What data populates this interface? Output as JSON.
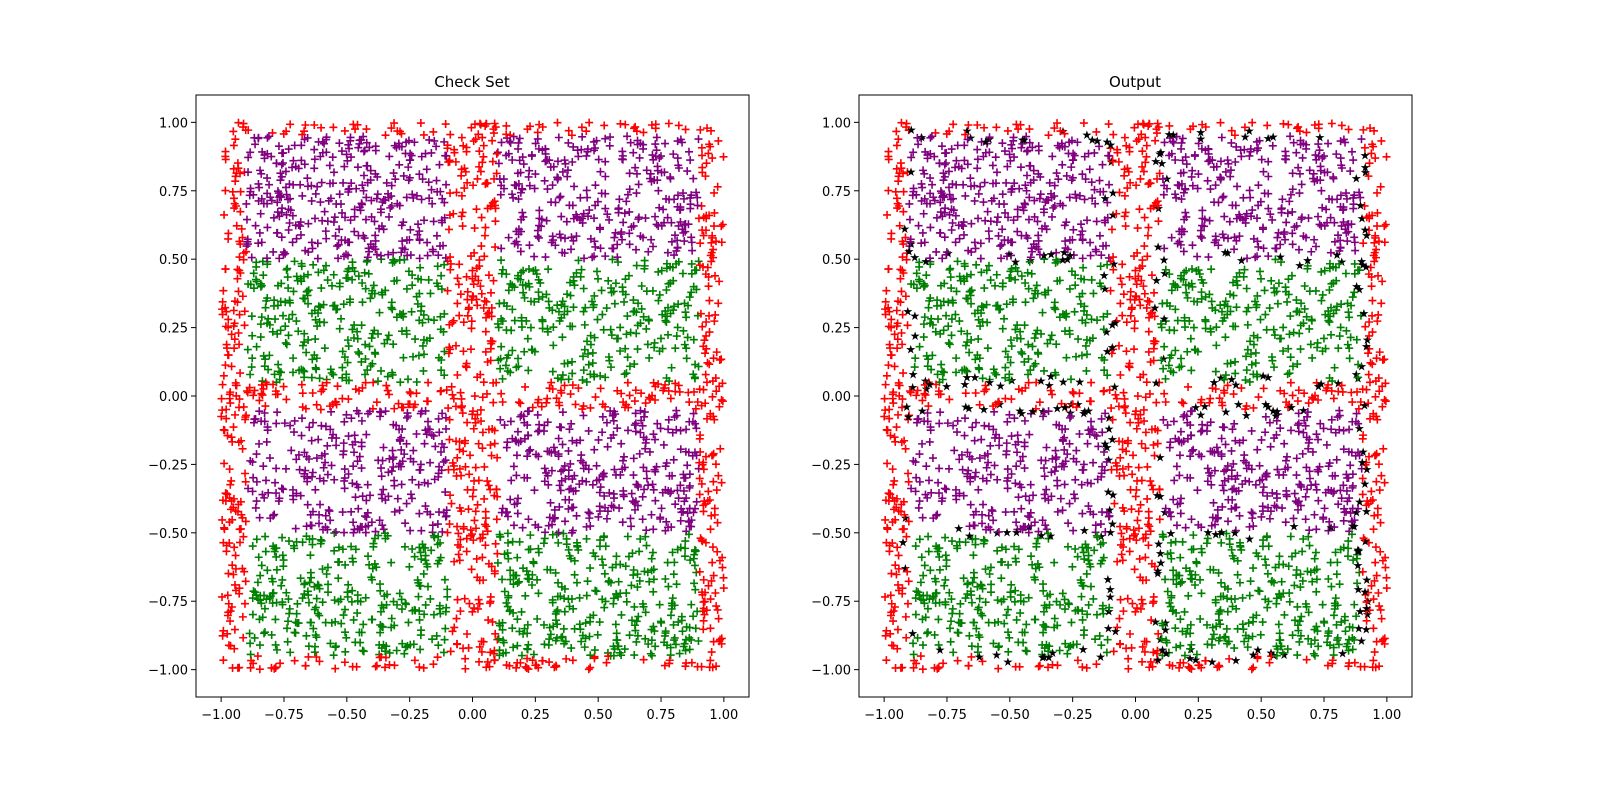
{
  "chart_data": [
    {
      "type": "scatter",
      "title": "Check Set",
      "xlabel": "",
      "ylabel": "",
      "xlim": [
        -1.1,
        1.1
      ],
      "ylim": [
        -1.1,
        1.1
      ],
      "xticks": [
        "−1.00",
        "−0.75",
        "−0.50",
        "−0.25",
        "0.00",
        "0.25",
        "0.50",
        "0.75",
        "1.00"
      ],
      "yticks": [
        "−1.00",
        "−0.75",
        "−0.50",
        "−0.25",
        "0.00",
        "0.25",
        "0.50",
        "0.75",
        "1.00"
      ],
      "xtick_values": [
        -1,
        -0.75,
        -0.5,
        -0.25,
        0,
        0.25,
        0.5,
        0.75,
        1
      ],
      "ytick_values": [
        -1,
        -0.75,
        -0.5,
        -0.25,
        0,
        0.25,
        0.5,
        0.75,
        1
      ],
      "grid": false,
      "marker": "+",
      "colors": {
        "class_red": "#ff0000",
        "class_purple": "#800080",
        "class_green": "#008000"
      },
      "class_regions": {
        "purple": [
          {
            "x": [
              -0.9,
              -0.1
            ],
            "y": [
              0.5,
              0.95
            ]
          },
          {
            "x": [
              0.1,
              0.9
            ],
            "y": [
              0.5,
              0.95
            ]
          },
          {
            "x": [
              -0.9,
              -0.1
            ],
            "y": [
              -0.5,
              -0.05
            ]
          },
          {
            "x": [
              0.1,
              0.9
            ],
            "y": [
              -0.5,
              -0.05
            ]
          }
        ],
        "green": [
          {
            "x": [
              -0.9,
              -0.1
            ],
            "y": [
              0.05,
              0.5
            ]
          },
          {
            "x": [
              0.1,
              0.9
            ],
            "y": [
              0.05,
              0.5
            ]
          },
          {
            "x": [
              -0.9,
              -0.1
            ],
            "y": [
              -0.95,
              -0.5
            ]
          },
          {
            "x": [
              0.1,
              0.9
            ],
            "y": [
              -0.95,
              -0.5
            ]
          }
        ],
        "red": "outside purple and green regions"
      },
      "x_range": [
        -1,
        1
      ],
      "y_range": [
        -1,
        1
      ]
    },
    {
      "type": "scatter",
      "title": "Output",
      "xlabel": "",
      "ylabel": "",
      "xlim": [
        -1.1,
        1.1
      ],
      "ylim": [
        -1.1,
        1.1
      ],
      "xticks": [
        "−1.00",
        "−0.75",
        "−0.50",
        "−0.25",
        "0.00",
        "0.25",
        "0.50",
        "0.75",
        "1.00"
      ],
      "yticks": [
        "−1.00",
        "−0.75",
        "−0.50",
        "−0.25",
        "0.00",
        "0.25",
        "0.50",
        "0.75",
        "1.00"
      ],
      "xtick_values": [
        -1,
        -0.75,
        -0.5,
        -0.25,
        0,
        0.25,
        0.5,
        0.75,
        1
      ],
      "ytick_values": [
        -1,
        -0.75,
        -0.5,
        -0.25,
        0,
        0.25,
        0.5,
        0.75,
        1
      ],
      "grid": false,
      "marker": "+",
      "misclassified_marker": "*",
      "colors": {
        "class_red": "#ff0000",
        "class_purple": "#800080",
        "class_green": "#008000",
        "misclassified": "#000000"
      },
      "x_range": [
        -1,
        1
      ],
      "y_range": [
        -1,
        1
      ]
    }
  ]
}
